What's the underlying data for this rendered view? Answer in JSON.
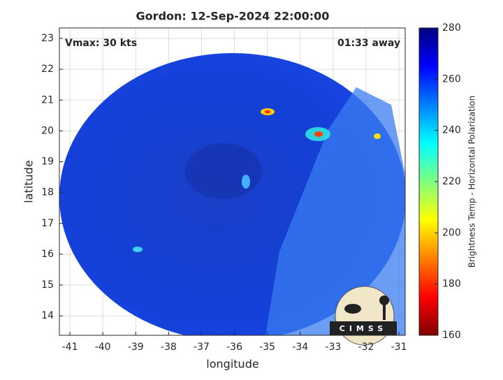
{
  "chart_data": {
    "type": "image",
    "title": "Gordon: 12-Sep-2024 22:00:00",
    "annotations": [
      "Vmax: 30 kts",
      "01:33 away"
    ],
    "xlabel": "longitude",
    "ylabel": "latitude",
    "xlim": [
      -41.32,
      -30.81
    ],
    "xticks": [
      -41,
      -40,
      -39,
      -38,
      -37,
      -36,
      -35,
      -34,
      -33,
      -32,
      -31
    ],
    "ylim": [
      13.37,
      23.34
    ],
    "yticks": [
      14,
      15,
      16,
      17,
      18,
      19,
      20,
      21,
      22,
      23
    ],
    "grid": true,
    "colorbar": {
      "label": "Brightness Temp - Horizontal Polarization",
      "colormap": "jet",
      "lim": [
        160,
        280
      ],
      "ticks": [
        160,
        180,
        200,
        220,
        240,
        260,
        280
      ]
    },
    "logo_text": "CIMSS"
  }
}
